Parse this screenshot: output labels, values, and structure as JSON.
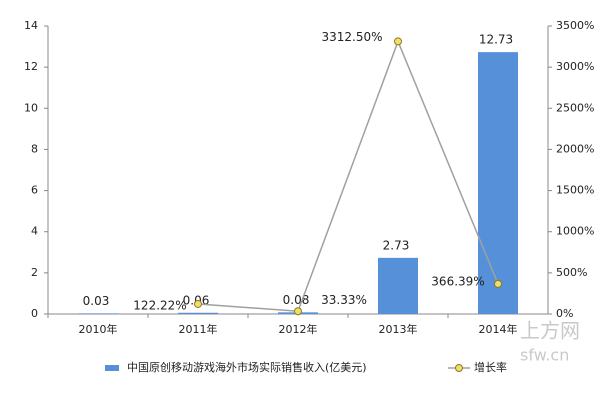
{
  "chart_data": {
    "type": "bar",
    "categories": [
      "2010年",
      "2011年",
      "2012年",
      "2013年",
      "2014年"
    ],
    "series": [
      {
        "name": "中国原创移动游戏海外市场实际销售收入(亿美元)",
        "type": "bar",
        "color": "#5590d8",
        "values": [
          0.03,
          0.06,
          0.08,
          2.73,
          12.73
        ]
      },
      {
        "name": "增长率",
        "type": "line",
        "color": "#a0a0a0",
        "marker_color": "#f2df6a",
        "axis": "y2",
        "values": [
          null,
          122.22,
          33.33,
          3312.5,
          366.39
        ],
        "value_labels": [
          null,
          "122.22%",
          "33.33%",
          "3312.50%",
          "366.39%"
        ]
      }
    ],
    "ylim": [
      0,
      14
    ],
    "yticks": [
      0,
      2,
      4,
      6,
      8,
      10,
      12,
      14
    ],
    "y2lim": [
      0,
      3500
    ],
    "y2ticks": [
      {
        "value": 0,
        "label": "0%"
      },
      {
        "value": 500,
        "label": "500%"
      },
      {
        "value": 1000,
        "label": "1000%"
      },
      {
        "value": 1500,
        "label": "1500%"
      },
      {
        "value": 2000,
        "label": "2000%"
      },
      {
        "value": 2500,
        "label": "2500%"
      },
      {
        "value": 3000,
        "label": "3000%"
      },
      {
        "value": 3500,
        "label": "3500%"
      }
    ],
    "legend": "bottom",
    "watermark": [
      "上方网",
      "sfw.cn"
    ]
  }
}
